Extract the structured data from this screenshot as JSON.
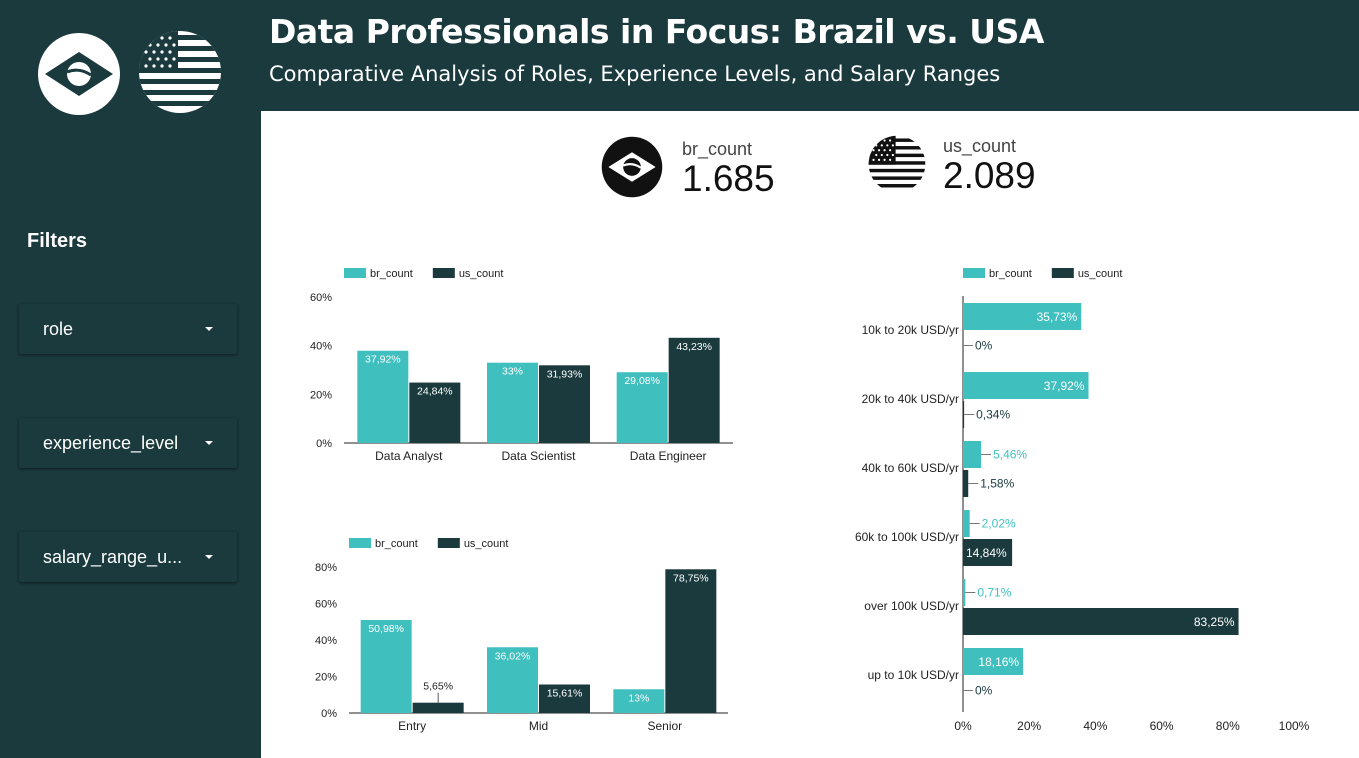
{
  "header": {
    "title": "Data Professionals in Focus: Brazil vs. USA",
    "subtitle": "Comparative Analysis of Roles, Experience Levels, and Salary Ranges"
  },
  "icons": {
    "brazil": "brazil-flag-icon",
    "usa": "usa-flag-icon"
  },
  "filters": {
    "title": "Filters",
    "items": [
      "role",
      "experience_level",
      "salary_range_u..."
    ]
  },
  "kpis": [
    {
      "label": "br_count",
      "value": "1.685"
    },
    {
      "label": "us_count",
      "value": "2.089"
    }
  ],
  "colors": {
    "br": "#40bfbf",
    "us": "#1a3a3e",
    "dark": "#1a3a3e"
  },
  "chart_data": [
    {
      "type": "bar",
      "categories": [
        "Data Analyst",
        "Data Scientist",
        "Data Engineer"
      ],
      "series": [
        {
          "name": "br_count",
          "values": [
            37.92,
            33,
            29.08
          ],
          "labels": [
            "37,92%",
            "33%",
            "29,08%"
          ]
        },
        {
          "name": "us_count",
          "values": [
            24.84,
            31.93,
            43.23
          ],
          "labels": [
            "24,84%",
            "31,93%",
            "43,23%"
          ]
        }
      ],
      "yticks": [
        "0%",
        "20%",
        "40%",
        "60%"
      ],
      "ylim": [
        0,
        60
      ],
      "legend": "top-left",
      "grid": false
    },
    {
      "type": "bar",
      "categories": [
        "Entry",
        "Mid",
        "Senior"
      ],
      "series": [
        {
          "name": "br_count",
          "values": [
            50.98,
            36.02,
            13
          ],
          "labels": [
            "50,98%",
            "36,02%",
            "13%"
          ]
        },
        {
          "name": "us_count",
          "values": [
            5.65,
            15.61,
            78.75
          ],
          "labels": [
            "5,65%",
            "15,61%",
            "78,75%"
          ]
        }
      ],
      "yticks": [
        "0%",
        "20%",
        "40%",
        "60%",
        "80%"
      ],
      "ylim": [
        0,
        80
      ],
      "legend": "top-left",
      "grid": false
    },
    {
      "type": "bar",
      "orientation": "horizontal",
      "categories": [
        "10k to 20k USD/yr",
        "20k to 40k USD/yr",
        "40k to 60k USD/yr",
        "60k to 100k USD/yr",
        "over 100k USD/yr",
        "up to 10k USD/yr"
      ],
      "series": [
        {
          "name": "br_count",
          "values": [
            35.73,
            37.92,
            5.46,
            2.02,
            0.71,
            18.16
          ],
          "labels": [
            "35,73%",
            "37,92%",
            "5,46%",
            "2,02%",
            "0,71%",
            "18,16%"
          ]
        },
        {
          "name": "us_count",
          "values": [
            0,
            0.34,
            1.58,
            14.84,
            83.25,
            0
          ],
          "labels": [
            "0%",
            "0,34%",
            "1,58%",
            "14,84%",
            "83,25%",
            "0%"
          ]
        }
      ],
      "xticks": [
        "0%",
        "20%",
        "40%",
        "60%",
        "80%",
        "100%"
      ],
      "xlim": [
        0,
        100
      ],
      "legend": "top-left",
      "grid": false
    }
  ]
}
